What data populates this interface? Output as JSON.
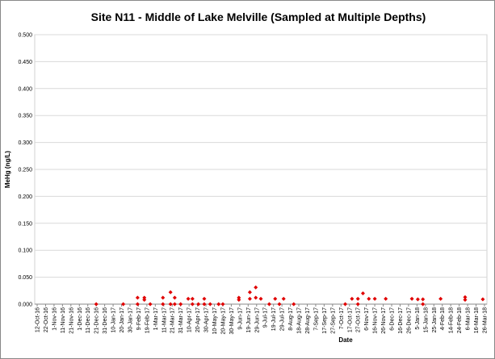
{
  "chart_data": {
    "type": "scatter",
    "title": "Site N11 -  Middle of Lake Melville (Sampled at Multiple Depths)",
    "xlabel": "Date",
    "ylabel": "MeHg (ng/L)",
    "color": "#e00000",
    "grid": true,
    "ylim": [
      0,
      0.5
    ],
    "yticks": [
      {
        "value": 0,
        "label": "0.000"
      },
      {
        "value": 0.05,
        "label": "0.050"
      },
      {
        "value": 0.1,
        "label": "0.100"
      },
      {
        "value": 0.15,
        "label": "0.150"
      },
      {
        "value": 0.2,
        "label": "0.200"
      },
      {
        "value": 0.25,
        "label": "0.250"
      },
      {
        "value": 0.3,
        "label": "0.300"
      },
      {
        "value": 0.35,
        "label": "0.350"
      },
      {
        "value": 0.4,
        "label": "0.400"
      },
      {
        "value": 0.45,
        "label": "0.450"
      },
      {
        "value": 0.5,
        "label": "0.500"
      }
    ],
    "xlim": [
      "12-Oct-16",
      "26-Mar-18"
    ],
    "xticks": [
      "12-Oct-16",
      "22-Oct-16",
      "1-Nov-16",
      "11-Nov-16",
      "21-Nov-16",
      "1-Dec-16",
      "11-Dec-16",
      "21-Dec-16",
      "31-Dec-16",
      "10-Jan-17",
      "20-Jan-17",
      "30-Jan-17",
      "9-Feb-17",
      "19-Feb-17",
      "1-Mar-17",
      "11-Mar-17",
      "21-Mar-17",
      "31-Mar-17",
      "10-Apr-17",
      "20-Apr-17",
      "30-Apr-17",
      "10-May-17",
      "20-May-17",
      "30-May-17",
      "9-Jun-17",
      "19-Jun-17",
      "29-Jun-17",
      "9-Jul-17",
      "19-Jul-17",
      "29-Jul-17",
      "8-Aug-17",
      "18-Aug-17",
      "28-Aug-17",
      "7-Sep-17",
      "17-Sep-17",
      "27-Sep-17",
      "7-Oct-17",
      "17-Oct-17",
      "27-Oct-17",
      "6-Nov-17",
      "16-Nov-17",
      "26-Nov-17",
      "6-Dec-17",
      "16-Dec-17",
      "26-Dec-17",
      "5-Jan-18",
      "15-Jan-18",
      "25-Jan-18",
      "4-Feb-18",
      "14-Feb-18",
      "24-Feb-18",
      "6-Mar-18",
      "16-Mar-18",
      "26-Mar-18"
    ],
    "x": [
      "21-Dec-16",
      "22-Jan-17",
      "8-Feb-17",
      "8-Feb-17",
      "16-Feb-17",
      "16-Feb-17",
      "23-Feb-17",
      "10-Mar-17",
      "10-Mar-17",
      "19-Mar-17",
      "19-Mar-17",
      "24-Mar-17",
      "24-Mar-17",
      "31-Mar-17",
      "9-Apr-17",
      "14-Apr-17",
      "14-Apr-17",
      "21-Apr-17",
      "28-Apr-17",
      "28-Apr-17",
      "5-May-17",
      "15-May-17",
      "20-May-17",
      "8-Jun-17",
      "8-Jun-17",
      "21-Jun-17",
      "21-Jun-17",
      "28-Jun-17",
      "28-Jun-17",
      "4-Jul-17",
      "14-Jul-17",
      "21-Jul-17",
      "26-Jul-17",
      "31-Jul-17",
      "12-Aug-17",
      "12-Oct-17",
      "20-Oct-17",
      "27-Oct-17",
      "27-Oct-17",
      "2-Nov-17",
      "9-Nov-17",
      "16-Nov-17",
      "29-Nov-17",
      "30-Dec-17",
      "6-Jan-18",
      "12-Jan-18",
      "12-Jan-18",
      "2-Feb-18",
      "3-Mar-18",
      "3-Mar-18",
      "24-Mar-18"
    ],
    "values": [
      0,
      0,
      0.012,
      0,
      0.012,
      0.008,
      0,
      0.012,
      0,
      0.022,
      0,
      0.012,
      0,
      0,
      0.01,
      0.01,
      0,
      0,
      0.01,
      0,
      0,
      0,
      0,
      0.012,
      0.008,
      0.022,
      0.01,
      0.031,
      0.012,
      0.01,
      0,
      0.01,
      0,
      0.01,
      0,
      0,
      0.01,
      0.01,
      0,
      0.02,
      0.01,
      0.01,
      0.01,
      0.01,
      0.009,
      0.009,
      0,
      0.01,
      0.013,
      0.008,
      0.009
    ]
  }
}
